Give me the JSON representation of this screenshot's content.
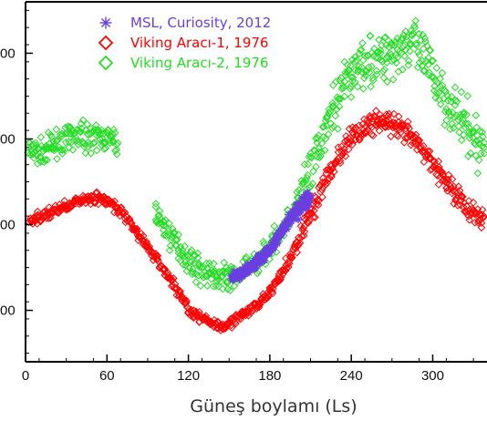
{
  "chart_data": {
    "type": "scatter",
    "xlabel": "Güneş boylamı (Ls)",
    "ylabel": "",
    "title": "",
    "xlim": [
      0,
      340
    ],
    "ylim": [
      6.4,
      10.6
    ],
    "x_ticks": [
      0,
      60,
      120,
      180,
      240,
      300
    ],
    "x_tick_labels": [
      "0",
      "60",
      "120",
      "180",
      "240",
      "300"
    ],
    "y_ticks": [
      7,
      8,
      9,
      10
    ],
    "y_tick_labels": [
      "00",
      "00",
      "00",
      "00"
    ],
    "legend_position": "top-left",
    "series": [
      {
        "name": "MSL, Curiosity, 2012",
        "marker": "asterisk",
        "color": "#6a3fe0",
        "x_range": [
          152,
          210
        ],
        "spread": 0.12,
        "x": [
          152,
          160,
          168,
          176,
          184,
          192,
          200,
          205,
          210
        ],
        "y": [
          7.38,
          7.44,
          7.53,
          7.64,
          7.8,
          8.0,
          8.18,
          8.28,
          8.33
        ]
      },
      {
        "name": "Viking Aracı-1, 1976",
        "marker": "diamond",
        "color": "#ff0000",
        "x_range": [
          0,
          340
        ],
        "spread": 0.12,
        "x": [
          0,
          10,
          20,
          30,
          40,
          50,
          60,
          70,
          80,
          90,
          100,
          110,
          120,
          130,
          140,
          145,
          150,
          160,
          170,
          180,
          190,
          200,
          210,
          220,
          230,
          240,
          250,
          260,
          270,
          280,
          290,
          300,
          310,
          320,
          330,
          340
        ],
        "y": [
          8.04,
          8.08,
          8.15,
          8.22,
          8.28,
          8.32,
          8.28,
          8.15,
          7.96,
          7.74,
          7.52,
          7.28,
          7.02,
          6.9,
          6.84,
          6.82,
          6.86,
          6.94,
          7.05,
          7.22,
          7.45,
          7.78,
          8.14,
          8.48,
          8.78,
          9.0,
          9.15,
          9.2,
          9.16,
          9.07,
          8.92,
          8.72,
          8.5,
          8.3,
          8.12,
          8.02
        ]
      },
      {
        "name": "Viking Aracı-2, 1976",
        "marker": "diamond",
        "color": "#22dd22",
        "x_range": [
          0,
          340
        ],
        "spread": 0.28,
        "x": [
          0,
          10,
          20,
          30,
          40,
          50,
          60,
          68,
          95,
          100,
          110,
          120,
          130,
          140,
          150,
          160,
          170,
          180,
          190,
          200,
          210,
          220,
          230,
          240,
          250,
          260,
          270,
          280,
          285,
          290,
          300,
          310,
          320,
          330,
          340
        ],
        "y": [
          8.85,
          8.84,
          8.92,
          9.0,
          9.03,
          9.03,
          9.0,
          8.94,
          8.15,
          8.02,
          7.8,
          7.6,
          7.46,
          7.4,
          7.38,
          7.44,
          7.56,
          7.74,
          7.98,
          8.25,
          8.6,
          9.05,
          9.48,
          9.78,
          9.92,
          9.92,
          10.02,
          10.12,
          10.14,
          10.02,
          9.75,
          9.46,
          9.22,
          8.98,
          8.88
        ]
      }
    ]
  }
}
